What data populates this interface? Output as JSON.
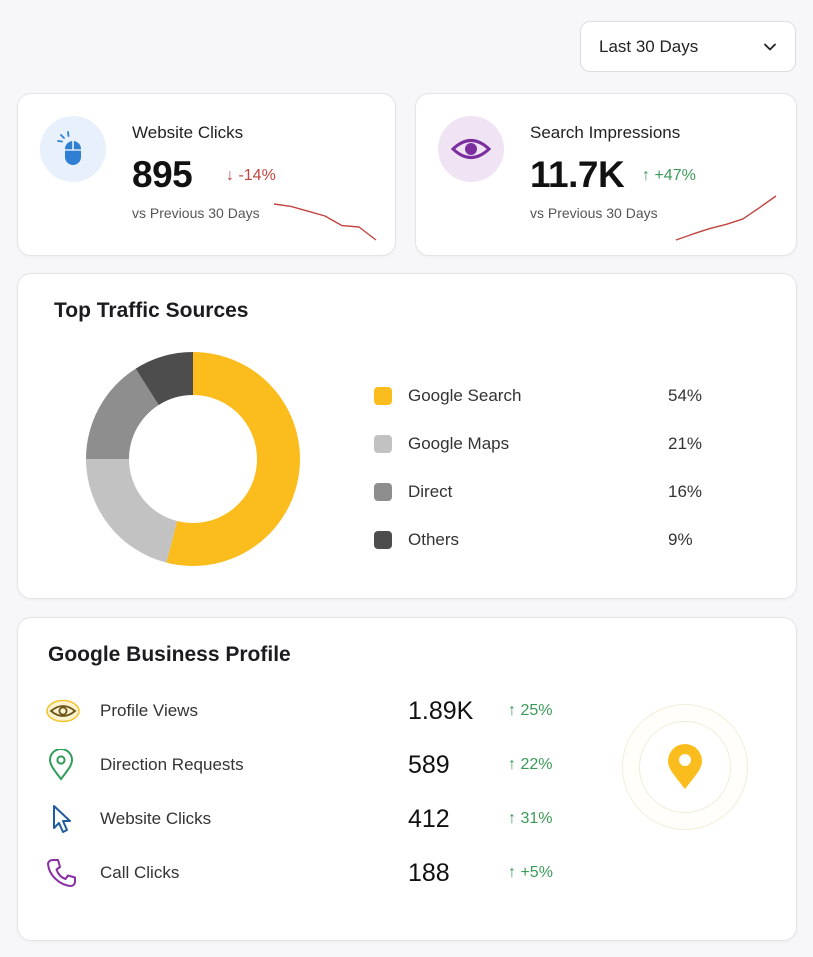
{
  "filter": {
    "selected": "Last 30 Days"
  },
  "stats": [
    {
      "title": "Website Clicks",
      "value": "895",
      "change": "-14%",
      "direction": "down",
      "subtitle": "vs Previous 30 Days",
      "icon": "mouse-icon",
      "trend": [
        8,
        7.5,
        6.5,
        5.5,
        3.5,
        3.2,
        0.5
      ]
    },
    {
      "title": "Search Impressions",
      "value": "11.7K",
      "change": "+47%",
      "direction": "up",
      "subtitle": "vs Previous 30 Days",
      "icon": "eye-icon",
      "trend": [
        0.5,
        1.6,
        2.6,
        3.4,
        4.4,
        6.5,
        8.7
      ]
    }
  ],
  "traffic": {
    "title": "Top Traffic Sources",
    "chart_data": {
      "type": "pie",
      "title": "",
      "categories": [
        "Google Search",
        "Google Maps",
        "Direct",
        "Others"
      ],
      "values": [
        54,
        21,
        16,
        9
      ],
      "colors": [
        "#fbbd1d",
        "#c2c2c2",
        "#8e8e8e",
        "#4d4d4d"
      ],
      "legend": "right"
    },
    "legend": [
      {
        "label": "Google Search",
        "pct": "54%",
        "color": "#fbbd1d"
      },
      {
        "label": "Google Maps",
        "pct": "21%",
        "color": "#c2c2c2"
      },
      {
        "label": "Direct",
        "pct": "16%",
        "color": "#8e8e8e"
      },
      {
        "label": "Others",
        "pct": "9%",
        "color": "#4d4d4d"
      }
    ]
  },
  "gbp": {
    "title": "Google Business Profile",
    "metrics": [
      {
        "label": "Profile Views",
        "value": "1.89K",
        "change": "↑ 25%",
        "icon": "eye-icon"
      },
      {
        "label": "Direction Requests",
        "value": "589",
        "change": "↑ 22%",
        "icon": "map-pin-icon"
      },
      {
        "label": "Website Clicks",
        "value": "412",
        "change": "↑ 31%",
        "icon": "cursor-icon"
      },
      {
        "label": "Call Clicks",
        "value": "188",
        "change": "↑ +5%",
        "icon": "phone-icon"
      }
    ],
    "badge_icon": "location-pin-icon"
  },
  "colors": {
    "accent": "#fbbd1d",
    "up": "#3b9a57",
    "down": "#c0443f",
    "spark": "#c0443f"
  }
}
